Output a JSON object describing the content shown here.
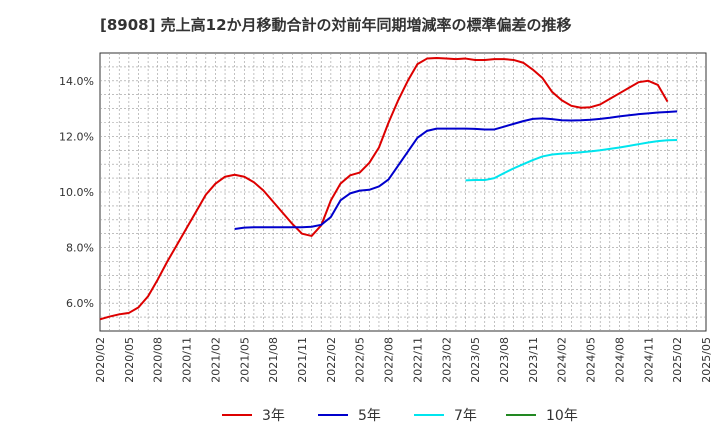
{
  "chart_data": {
    "type": "line",
    "title": "[8908]  売上高12か月移動合計の対前年同期増減率の標準偏差の推移",
    "xlabel": "",
    "ylabel": "",
    "ylim": [
      5.0,
      15.0
    ],
    "yticks": [
      6.0,
      8.0,
      10.0,
      12.0,
      14.0
    ],
    "ytick_labels": [
      "6.0%",
      "8.0%",
      "10.0%",
      "12.0%",
      "14.0%"
    ],
    "x_start": "2020-02",
    "x_end": "2025-05",
    "xtick_labels": [
      "2020/02",
      "2020/05",
      "2020/08",
      "2020/11",
      "2021/02",
      "2021/05",
      "2021/08",
      "2021/11",
      "2022/02",
      "2022/05",
      "2022/08",
      "2022/11",
      "2023/02",
      "2023/05",
      "2023/08",
      "2023/11",
      "2024/02",
      "2024/05",
      "2024/08",
      "2024/11",
      "2025/02",
      "2025/05"
    ],
    "grid": true,
    "legend_position": "bottom",
    "series": [
      {
        "name": "3年",
        "color": "#dd0000",
        "start": "2020-02",
        "values": [
          5.42,
          5.52,
          5.6,
          5.65,
          5.85,
          6.25,
          6.85,
          7.5,
          8.1,
          8.7,
          9.3,
          9.9,
          10.3,
          10.55,
          10.62,
          10.55,
          10.35,
          10.05,
          9.65,
          9.25,
          8.85,
          8.5,
          8.42,
          8.8,
          9.7,
          10.3,
          10.6,
          10.7,
          11.05,
          11.6,
          12.5,
          13.3,
          14.0,
          14.6,
          14.8,
          14.82,
          14.8,
          14.78,
          14.8,
          14.75,
          14.75,
          14.78,
          14.78,
          14.75,
          14.65,
          14.4,
          14.1,
          13.6,
          13.3,
          13.1,
          13.03,
          13.05,
          13.15,
          13.35,
          13.55,
          13.75,
          13.95,
          14.0,
          13.85,
          13.25
        ]
      },
      {
        "name": "5年",
        "color": "#0000cc",
        "start": "2021-04",
        "values": [
          8.67,
          8.72,
          8.73,
          8.73,
          8.73,
          8.73,
          8.73,
          8.73,
          8.75,
          8.82,
          9.1,
          9.7,
          9.95,
          10.05,
          10.08,
          10.2,
          10.45,
          10.95,
          11.45,
          11.95,
          12.2,
          12.28,
          12.28,
          12.28,
          12.28,
          12.27,
          12.25,
          12.25,
          12.35,
          12.45,
          12.55,
          12.63,
          12.65,
          12.62,
          12.58,
          12.57,
          12.58,
          12.6,
          12.63,
          12.67,
          12.72,
          12.76,
          12.8,
          12.83,
          12.86,
          12.88,
          12.9
        ]
      },
      {
        "name": "7年",
        "color": "#00e5ee",
        "start": "2023-04",
        "values": [
          10.42,
          10.43,
          10.43,
          10.5,
          10.68,
          10.85,
          11.0,
          11.15,
          11.28,
          11.35,
          11.38,
          11.4,
          11.43,
          11.46,
          11.5,
          11.55,
          11.6,
          11.66,
          11.72,
          11.78,
          11.83,
          11.86,
          11.87
        ]
      },
      {
        "name": "10年",
        "color": "#228822",
        "start": "2025-02",
        "values": []
      }
    ]
  }
}
